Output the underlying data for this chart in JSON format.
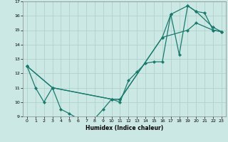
{
  "xlabel": "Humidex (Indice chaleur)",
  "xlim": [
    -0.5,
    23.5
  ],
  "ylim": [
    9,
    17
  ],
  "yticks": [
    9,
    10,
    11,
    12,
    13,
    14,
    15,
    16,
    17
  ],
  "xticks": [
    0,
    1,
    2,
    3,
    4,
    5,
    6,
    7,
    8,
    9,
    10,
    11,
    12,
    13,
    14,
    15,
    16,
    17,
    18,
    19,
    20,
    21,
    22,
    23
  ],
  "line_color": "#1a7a6e",
  "bg_color": "#cce8e4",
  "grid_color": "#aacfca",
  "line1_x": [
    0,
    1,
    2,
    3,
    4,
    5,
    6,
    7,
    8,
    9,
    10,
    11,
    12,
    13,
    14,
    15,
    16,
    17,
    18,
    19,
    20,
    21,
    22,
    23
  ],
  "line1_y": [
    12.5,
    11.0,
    10.0,
    11.0,
    9.5,
    9.2,
    8.85,
    8.85,
    8.85,
    9.5,
    10.2,
    10.0,
    11.5,
    12.1,
    12.7,
    12.8,
    12.8,
    16.1,
    13.3,
    16.7,
    16.3,
    16.2,
    15.0,
    14.9
  ],
  "line2_x": [
    0,
    3,
    10,
    11,
    16,
    17,
    19,
    20,
    22,
    23
  ],
  "line2_y": [
    12.5,
    11.0,
    10.2,
    10.2,
    14.5,
    16.1,
    16.7,
    16.3,
    15.2,
    14.9
  ],
  "line3_x": [
    0,
    3,
    10,
    11,
    16,
    19,
    20,
    22,
    23
  ],
  "line3_y": [
    12.5,
    11.0,
    10.2,
    10.2,
    14.5,
    15.0,
    15.5,
    15.0,
    14.9
  ]
}
